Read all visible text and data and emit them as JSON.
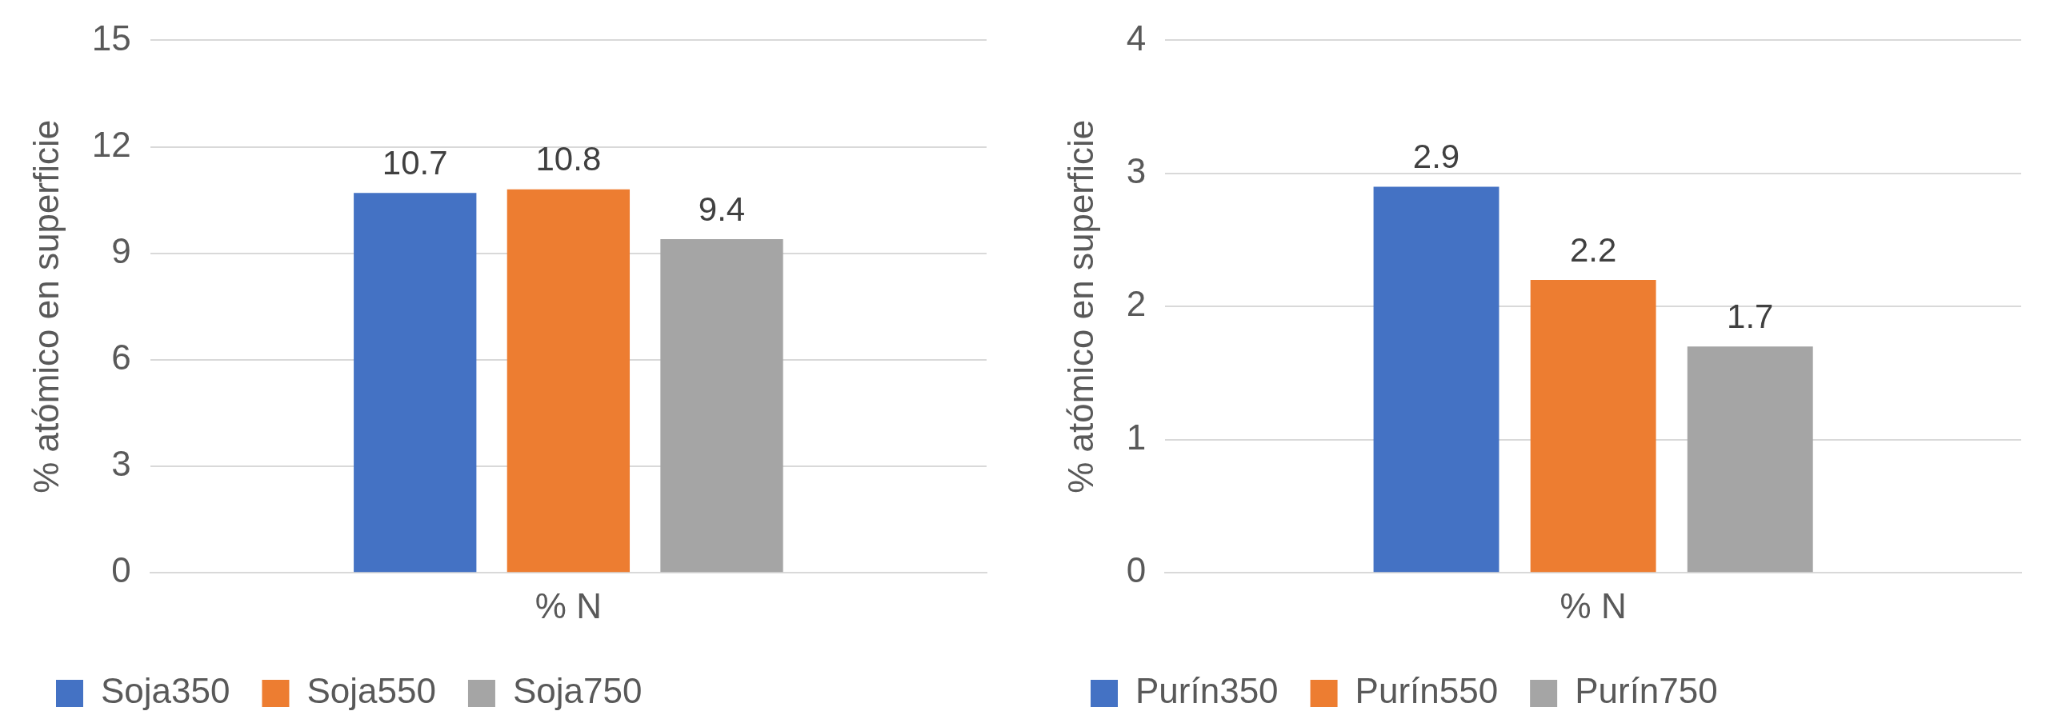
{
  "chart_data": [
    {
      "type": "bar",
      "ylabel": "% atómico en superficie",
      "categories": [
        "% N"
      ],
      "series": [
        {
          "name": "Soja350",
          "color": "#4472c4",
          "values": [
            10.7
          ]
        },
        {
          "name": "Soja550",
          "color": "#ed7d31",
          "values": [
            10.8
          ]
        },
        {
          "name": "Soja750",
          "color": "#a5a5a5",
          "values": [
            9.4
          ]
        }
      ],
      "ylim": [
        0,
        15
      ],
      "yticks": [
        0,
        3,
        6,
        9,
        12,
        15
      ],
      "grid": "y",
      "legend": "bottom",
      "data_labels": true
    },
    {
      "type": "bar",
      "ylabel": "% atómico en superficie",
      "categories": [
        "% N"
      ],
      "series": [
        {
          "name": "Purín350",
          "color": "#4472c4",
          "values": [
            2.9
          ]
        },
        {
          "name": "Purín550",
          "color": "#ed7d31",
          "values": [
            2.2
          ]
        },
        {
          "name": "Purín750",
          "color": "#a5a5a5",
          "values": [
            1.7
          ]
        }
      ],
      "ylim": [
        0,
        4
      ],
      "yticks": [
        0,
        1,
        2,
        3,
        4
      ],
      "grid": "y",
      "legend": "bottom",
      "data_labels": true
    }
  ]
}
